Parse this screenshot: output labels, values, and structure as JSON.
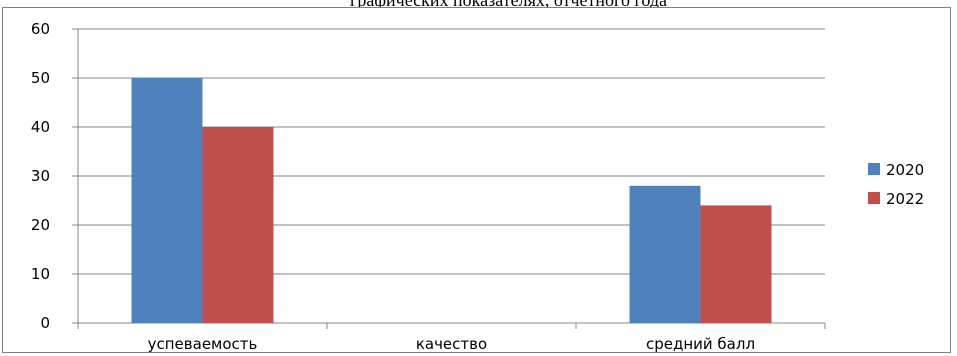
{
  "header_fragment": "графических показателях, отчетного года",
  "chart_data": {
    "type": "bar",
    "title": "",
    "xlabel": "",
    "ylabel": "",
    "ylim": [
      0,
      60
    ],
    "yticks": [
      0,
      10,
      20,
      30,
      40,
      50,
      60
    ],
    "grid": true,
    "legend_position": "right",
    "categories": [
      "успеваемость",
      "качество",
      "средний балл"
    ],
    "series": [
      {
        "name": "2020",
        "color": "#4f81bd",
        "values": [
          50,
          0,
          28
        ]
      },
      {
        "name": "2022",
        "color": "#c0504d",
        "values": [
          40,
          0,
          24
        ]
      }
    ]
  }
}
